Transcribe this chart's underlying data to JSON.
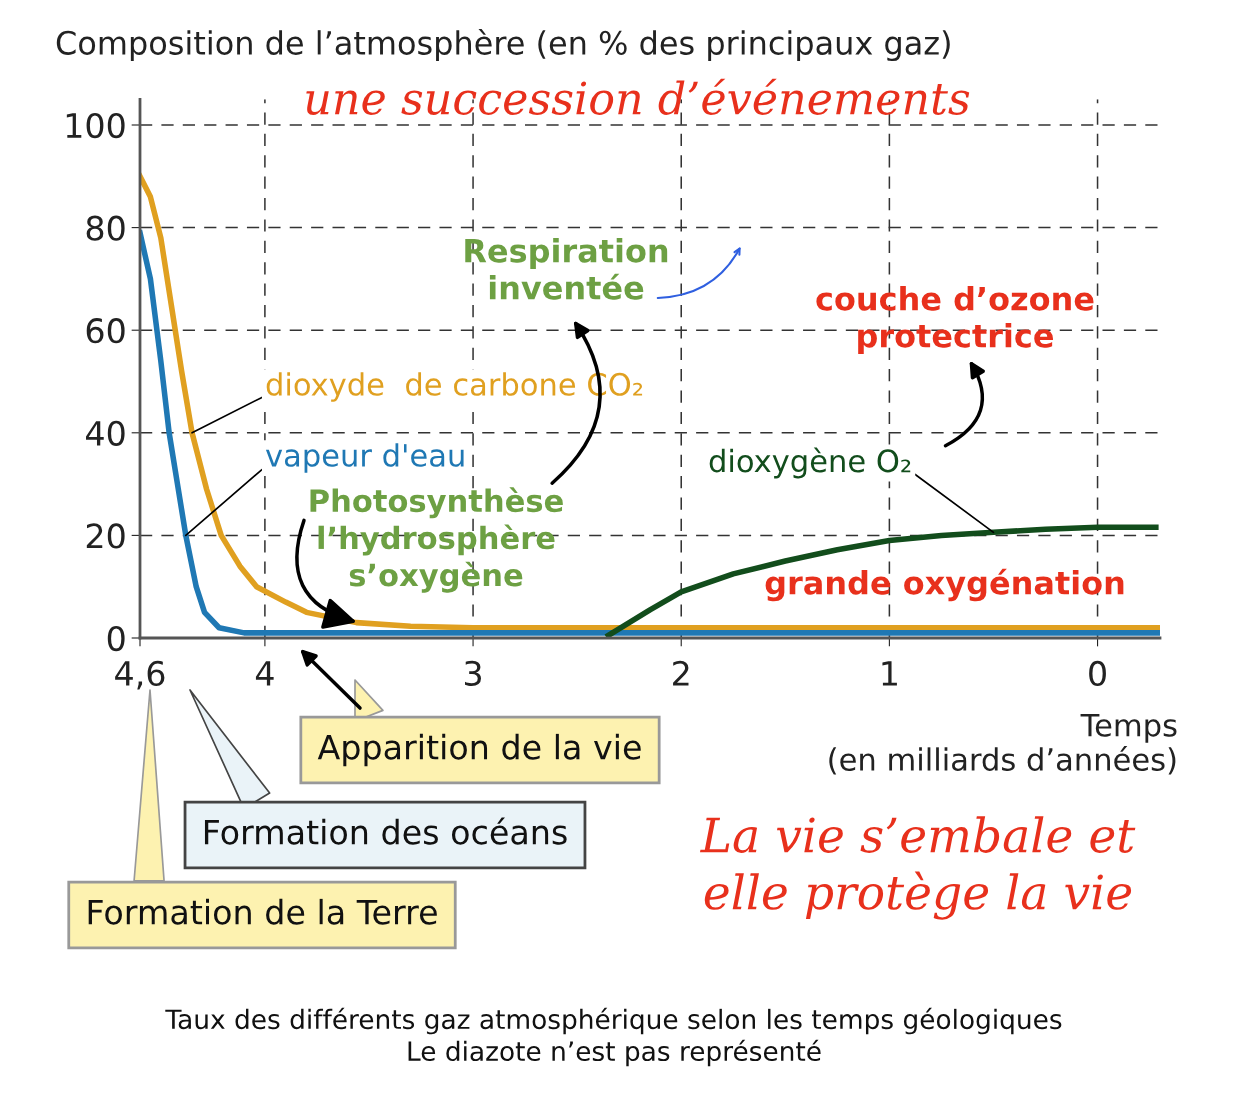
{
  "chart_data": {
    "type": "line",
    "title": "Composition de l’atmosphère (en % des principaux gaz)",
    "xlabel": "Temps\n(en milliards d’années)",
    "xlim": [
      4.6,
      -0.3
    ],
    "xticks": [
      {
        "value": 4.6,
        "label": "4,6"
      },
      4,
      3,
      2,
      1,
      0
    ],
    "ylim": [
      0,
      105
    ],
    "yticks": [
      0,
      20,
      40,
      60,
      80,
      100
    ],
    "grid": true,
    "line_style": "solid",
    "marker": "none",
    "series": [
      {
        "name": "dioxyde  de carbone CO₂",
        "color": "#e0a020",
        "x": [
          4.6,
          4.55,
          4.5,
          4.45,
          4.4,
          4.35,
          4.28,
          4.21,
          4.12,
          4.04,
          3.9,
          3.8,
          3.56,
          3.3,
          3,
          2,
          1,
          0,
          -0.3
        ],
        "values": [
          90,
          86,
          78,
          65,
          52,
          40,
          29,
          20,
          14,
          10,
          7,
          5,
          3,
          2.3,
          2,
          2,
          2,
          2,
          2
        ]
      },
      {
        "name": "vapeur d'eau",
        "color": "#1f78b4",
        "x": [
          4.6,
          4.55,
          4.5,
          4.46,
          4.42,
          4.38,
          4.33,
          4.29,
          4.22,
          4.1,
          3.5,
          -0.3
        ],
        "values": [
          79,
          70,
          54,
          40,
          30,
          20,
          10,
          5,
          2,
          1,
          1,
          1
        ]
      },
      {
        "name": "dioxygène O₂",
        "color": "#124d1c",
        "x": [
          2.35,
          2.25,
          2.15,
          2.0,
          1.75,
          1.5,
          1.25,
          1.0,
          0.75,
          0.5,
          0.25,
          0,
          -0.28
        ],
        "values": [
          0.5,
          3,
          5.5,
          9,
          12.5,
          15,
          17.2,
          19,
          20,
          20.6,
          21.2,
          21.6,
          21.6
        ]
      }
    ],
    "annotations": [
      "une succession d’événements",
      "Respiration\ninventée",
      "couche d’ozone\nprotectrice",
      {
        "text": "Photosynthèse\nl’hydrosphère\ns’oxygène",
        "x": 3.5,
        "y": 2.5
      },
      "grande oxygénation",
      "Apparition de la vie",
      "Formation des océans",
      "Formation de la Terre",
      "La vie s’embale et\nelle protège la vie",
      "Taux des différents gaz atmosphérique selon les temps géologiques\nLe diazote n’est pas représenté"
    ]
  }
}
